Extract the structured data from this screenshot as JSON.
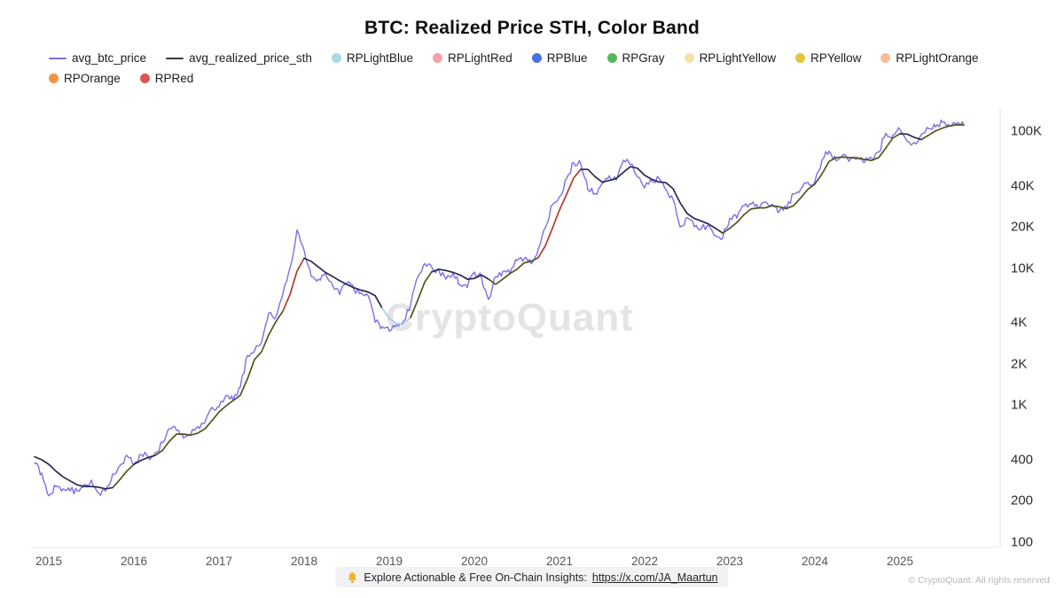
{
  "title": "BTC: Realized Price STH, Color Band",
  "watermark": "CryptoQuant",
  "footer": {
    "prefix": "Explore Actionable & Free On-Chain Insights:",
    "link": "https://x.com/JA_Maartun",
    "copyright": "© CryptoQuant. All rights reserved"
  },
  "legend": [
    {
      "label": "avg_btc_price",
      "marker": "line",
      "color": "#7d6ee8"
    },
    {
      "label": "avg_realized_price_sth",
      "marker": "line",
      "color": "#3a3a3a"
    },
    {
      "label": "RPLightBlue",
      "marker": "dot",
      "color": "#a9d8e8"
    },
    {
      "label": "RPLightRed",
      "marker": "dot",
      "color": "#f2a3a9"
    },
    {
      "label": "RPBlue",
      "marker": "dot",
      "color": "#4b6fe0"
    },
    {
      "label": "RPGray",
      "marker": "dot",
      "color": "#57b85c"
    },
    {
      "label": "RPLightYellow",
      "marker": "dot",
      "color": "#efe3a6"
    },
    {
      "label": "RPYellow",
      "marker": "dot",
      "color": "#e6c33c"
    },
    {
      "label": "RPLightOrange",
      "marker": "dot",
      "color": "#f4bd98"
    },
    {
      "label": "RPOrange",
      "marker": "dot",
      "color": "#f29142"
    },
    {
      "label": "RPRed",
      "marker": "dot",
      "color": "#da5552"
    }
  ],
  "axes": {
    "y_ticks": [
      {
        "label": "100K",
        "value": 100000
      },
      {
        "label": "40K",
        "value": 40000
      },
      {
        "label": "20K",
        "value": 20000
      },
      {
        "label": "10K",
        "value": 10000
      },
      {
        "label": "4K",
        "value": 4000
      },
      {
        "label": "2K",
        "value": 2000
      },
      {
        "label": "1K",
        "value": 1000
      },
      {
        "label": "400",
        "value": 400
      },
      {
        "label": "200",
        "value": 200
      },
      {
        "label": "100",
        "value": 100
      }
    ],
    "x_ticks": [
      "2015",
      "2016",
      "2017",
      "2018",
      "2019",
      "2020",
      "2021",
      "2022",
      "2023",
      "2024",
      "2025"
    ]
  },
  "chart_data": {
    "type": "line",
    "title": "BTC: Realized Price STH, Color Band",
    "y_scale": "log10",
    "ylim": [
      100,
      130000
    ],
    "x_start": "2014-11",
    "x_end": "2025-10",
    "frequency": "monthly",
    "legend_position": "top-left",
    "grid": false,
    "series": [
      {
        "name": "avg_btc_price",
        "color": "#7d6ee8",
        "values": [
          375,
          320,
          218,
          254,
          245,
          236,
          237,
          263,
          284,
          230,
          236,
          314,
          360,
          430,
          368,
          437,
          416,
          448,
          531,
          673,
          655,
          575,
          610,
          700,
          745,
          963,
          970,
          1180,
          1080,
          1350,
          2300,
          2480,
          2875,
          4700,
          4360,
          6450,
          10000,
          19000,
          13500,
          8700,
          8300,
          9250,
          7500,
          6400,
          7750,
          7000,
          6600,
          6300,
          4020,
          3740,
          3460,
          3850,
          4100,
          5350,
          8560,
          10800,
          10100,
          9600,
          8300,
          9150,
          7550,
          7200,
          9350,
          8550,
          5900,
          8650,
          9450,
          9140,
          11350,
          11650,
          10780,
          13800,
          19700,
          29000,
          33100,
          45200,
          58800,
          57750,
          37300,
          35000,
          41600,
          47150,
          43800,
          61300,
          57000,
          46200,
          38500,
          43200,
          45500,
          37650,
          31800,
          19950,
          23300,
          20050,
          19400,
          20500,
          17150,
          16550,
          23100,
          23150,
          28500,
          29250,
          27200,
          30450,
          29250,
          26000,
          26950,
          34650,
          37700,
          42250,
          42550,
          61200,
          71300,
          60650,
          67500,
          62700,
          64600,
          59000,
          63300,
          70200,
          96400,
          93400,
          102400,
          84350,
          82550,
          94200,
          104600,
          107100,
          115750,
          108250,
          114000,
          111000
        ]
      },
      {
        "name": "avg_realized_price_sth",
        "color": "#262a4f",
        "values": [
          420,
          400,
          370,
          330,
          300,
          280,
          262,
          255,
          255,
          252,
          245,
          250,
          285,
          330,
          370,
          395,
          415,
          430,
          465,
          545,
          615,
          615,
          605,
          625,
          670,
          770,
          890,
          990,
          1080,
          1180,
          1550,
          2150,
          2450,
          3250,
          4050,
          4850,
          6400,
          9500,
          11800,
          11200,
          10200,
          9300,
          8700,
          8100,
          7600,
          7200,
          6900,
          6700,
          6300,
          5100,
          4300,
          3950,
          3900,
          4350,
          5800,
          7900,
          9400,
          9800,
          9600,
          9300,
          8900,
          8300,
          8400,
          8900,
          8300,
          7600,
          8300,
          9100,
          9800,
          10900,
          11200,
          11900,
          14500,
          19500,
          26500,
          34500,
          45500,
          52500,
          52500,
          46500,
          42500,
          43500,
          45000,
          50000,
          55000,
          53500,
          47500,
          44500,
          42500,
          42000,
          38000,
          30000,
          25000,
          23000,
          22000,
          21000,
          19500,
          18000,
          19500,
          21500,
          24500,
          27000,
          27500,
          27500,
          28500,
          28000,
          27200,
          28500,
          32500,
          37500,
          41000,
          48500,
          60000,
          64000,
          64500,
          64000,
          63500,
          62000,
          61000,
          64000,
          75000,
          89000,
          95500,
          95000,
          90000,
          86500,
          93000,
          100000,
          105000,
          109000,
          111000,
          110500
        ],
        "band_palette": {
          "navy": "#262a4f",
          "olive": "#55531d",
          "red": "#b23c2a",
          "lightblue": "#a3d3e3"
        },
        "band_ranges": [
          {
            "from": "2014-11",
            "to": "2015-10",
            "color": "navy"
          },
          {
            "from": "2015-11",
            "to": "2016-01",
            "color": "olive"
          },
          {
            "from": "2016-02",
            "to": "2016-04",
            "color": "navy"
          },
          {
            "from": "2016-05",
            "to": "2017-10",
            "color": "olive"
          },
          {
            "from": "2017-11",
            "to": "2018-01",
            "color": "red"
          },
          {
            "from": "2018-02",
            "to": "2018-12",
            "color": "navy"
          },
          {
            "from": "2019-01",
            "to": "2019-04",
            "color": "lightblue"
          },
          {
            "from": "2019-05",
            "to": "2019-07",
            "color": "olive"
          },
          {
            "from": "2019-08",
            "to": "2020-03",
            "color": "navy"
          },
          {
            "from": "2020-04",
            "to": "2020-10",
            "color": "olive"
          },
          {
            "from": "2020-11",
            "to": "2021-04",
            "color": "red"
          },
          {
            "from": "2021-05",
            "to": "2022-12",
            "color": "navy"
          },
          {
            "from": "2023-01",
            "to": "2025-01",
            "color": "olive"
          },
          {
            "from": "2025-02",
            "to": "2025-04",
            "color": "navy"
          },
          {
            "from": "2025-05",
            "to": "2025-10",
            "color": "olive"
          }
        ]
      }
    ]
  }
}
